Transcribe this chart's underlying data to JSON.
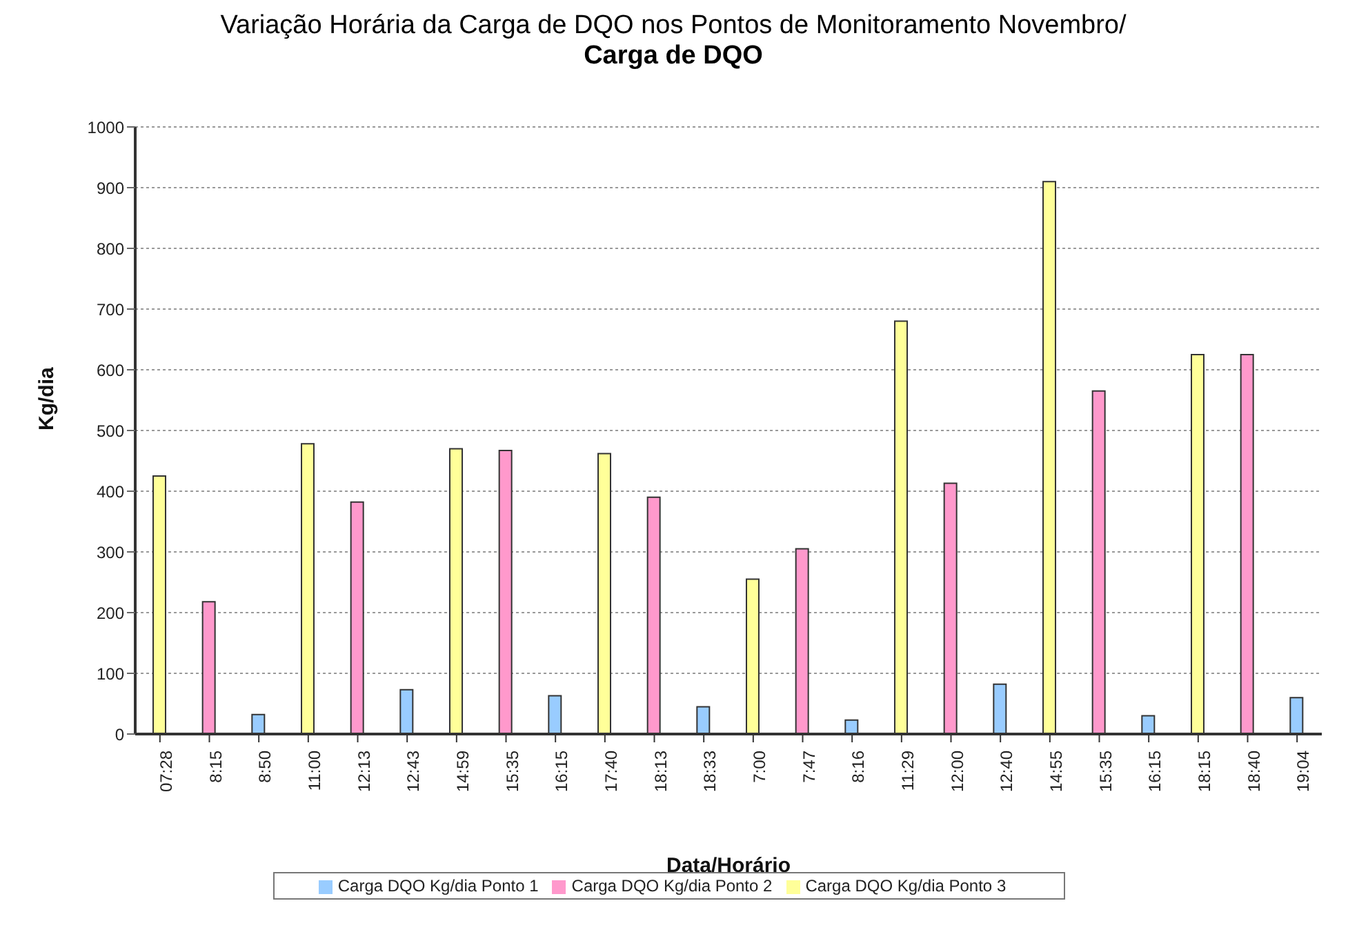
{
  "chart_data": {
    "type": "bar",
    "title": "Variação Horária da Carga de DQO nos Pontos de Monitoramento Novembro/",
    "subtitle": "Carga de DQO",
    "xlabel": "Data/Horário",
    "ylabel": "Kg/dia",
    "categories": [
      "07:28",
      "8:15",
      "8:50",
      "11:00",
      "12:13",
      "12:43",
      "14:59",
      "15:35",
      "16:15",
      "17:40",
      "18:13",
      "18:33",
      "7:00",
      "7:47",
      "8:16",
      "11:29",
      "12:00",
      "12:40",
      "14:55",
      "15:35",
      "16:15",
      "18:15",
      "18:40",
      "19:04"
    ],
    "series": [
      {
        "name": "Carga DQO Kg/dia Ponto 1",
        "color": "#99ccff",
        "values": [
          null,
          null,
          32,
          null,
          null,
          73,
          null,
          null,
          63,
          null,
          null,
          45,
          null,
          null,
          23,
          null,
          null,
          82,
          null,
          null,
          30,
          null,
          null,
          60
        ]
      },
      {
        "name": "Carga DQO Kg/dia Ponto 2",
        "color": "#ff99cc",
        "values": [
          null,
          218,
          null,
          null,
          382,
          null,
          null,
          467,
          null,
          null,
          390,
          null,
          null,
          305,
          null,
          null,
          413,
          null,
          null,
          565,
          null,
          null,
          625,
          null
        ]
      },
      {
        "name": "Carga DQO Kg/dia Ponto 3",
        "color": "#ffff99",
        "values": [
          425,
          null,
          null,
          478,
          null,
          null,
          470,
          null,
          null,
          462,
          null,
          null,
          255,
          null,
          null,
          680,
          null,
          null,
          910,
          null,
          null,
          625,
          null,
          null
        ]
      }
    ],
    "ylim": [
      0,
      1000
    ],
    "yticks": [
      0,
      100,
      200,
      300,
      400,
      500,
      600,
      700,
      800,
      900,
      1000
    ],
    "grid": "y",
    "legend": "bottom"
  }
}
